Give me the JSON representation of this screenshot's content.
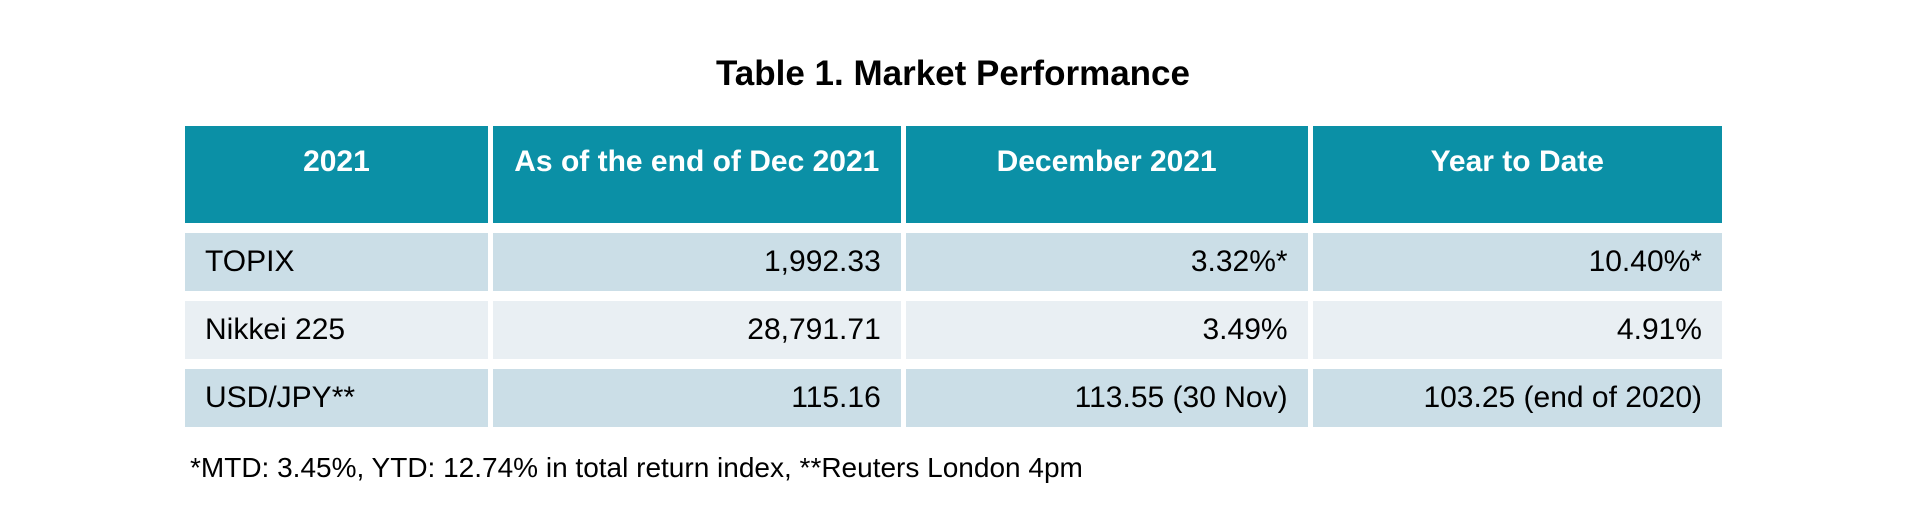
{
  "chart_data": {
    "type": "table",
    "title": "Table 1. Market Performance",
    "columns": [
      "2021",
      "As of the end of Dec 2021",
      "December 2021",
      "Year to Date"
    ],
    "rows": [
      [
        "TOPIX",
        "1,992.33",
        "3.32%*",
        "10.40%*"
      ],
      [
        "Nikkei 225",
        "28,791.71",
        "3.49%",
        "4.91%"
      ],
      [
        "USD/JPY**",
        "115.16",
        "113.55 (30 Nov)",
        "103.25 (end of 2020)"
      ]
    ],
    "footnote": "*MTD: 3.45%, YTD: 12.74% in total return index, **Reuters London 4pm"
  },
  "theme": {
    "page_bg": "#FFFFFF",
    "header_bg": "#0B90A6",
    "header_text": "#FFFFFF",
    "row_band_dark": "#CBDEE7",
    "row_band_light": "#E9EFF3",
    "body_text": "#000000"
  }
}
